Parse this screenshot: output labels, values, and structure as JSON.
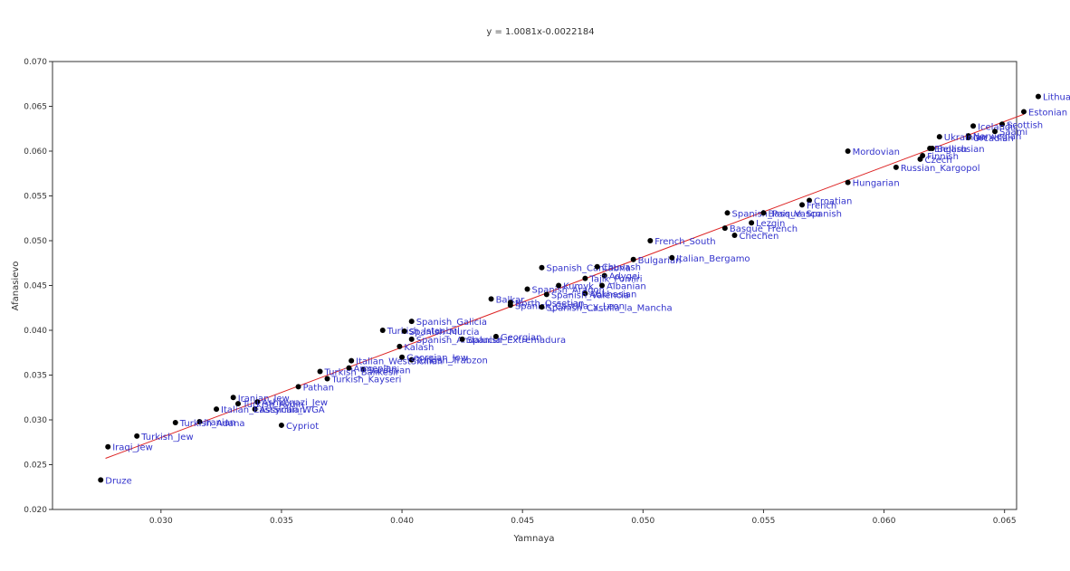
{
  "chart_data": {
    "type": "scatter",
    "title": "y = 1.0081x-0.0022184",
    "xlabel": "Yamnaya",
    "ylabel": "Afanasievo",
    "xlim": [
      0.0255,
      0.0655
    ],
    "ylim": [
      0.02,
      0.07
    ],
    "xticks": [
      "0.030",
      "0.035",
      "0.040",
      "0.045",
      "0.050",
      "0.055",
      "0.060",
      "0.065"
    ],
    "yticks": [
      "0.020",
      "0.025",
      "0.030",
      "0.035",
      "0.040",
      "0.045",
      "0.050",
      "0.055",
      "0.060",
      "0.065",
      "0.070"
    ],
    "trendline": {
      "slope": 1.0081,
      "intercept": -0.0022184,
      "x_range": [
        0.0277,
        0.0658
      ],
      "color": "#dd2222"
    },
    "point_color": "#000000",
    "label_color": "#3333cc",
    "points": [
      {
        "label": "Lithuanian",
        "x": 0.0664,
        "y": 0.0661
      },
      {
        "label": "Estonian",
        "x": 0.0658,
        "y": 0.0644
      },
      {
        "label": "Scottish",
        "x": 0.0649,
        "y": 0.063
      },
      {
        "label": "Icelandic",
        "x": 0.0637,
        "y": 0.0628
      },
      {
        "label": "Saami",
        "x": 0.0646,
        "y": 0.0622
      },
      {
        "label": "Norwegian",
        "x": 0.0635,
        "y": 0.0617
      },
      {
        "label": "Orcadian",
        "x": 0.0635,
        "y": 0.0615
      },
      {
        "label": "Ukrainian",
        "x": 0.0623,
        "y": 0.0616
      },
      {
        "label": "Belarusian",
        "x": 0.062,
        "y": 0.0603
      },
      {
        "label": "English",
        "x": 0.0619,
        "y": 0.0603
      },
      {
        "label": "Mordovian",
        "x": 0.0585,
        "y": 0.06
      },
      {
        "label": "Finnish",
        "x": 0.0616,
        "y": 0.0595
      },
      {
        "label": "Czech",
        "x": 0.0615,
        "y": 0.0591
      },
      {
        "label": "Russian_Kargopol",
        "x": 0.0605,
        "y": 0.0582
      },
      {
        "label": "Hungarian",
        "x": 0.0585,
        "y": 0.0565
      },
      {
        "label": "Croatian",
        "x": 0.0569,
        "y": 0.0545
      },
      {
        "label": "French",
        "x": 0.0566,
        "y": 0.054
      },
      {
        "label": "Spanish_Pais_Vasco",
        "x": 0.0535,
        "y": 0.0531
      },
      {
        "label": "Basque_Spanish",
        "x": 0.055,
        "y": 0.0531
      },
      {
        "label": "Lezgin",
        "x": 0.0545,
        "y": 0.052
      },
      {
        "label": "Basque_French",
        "x": 0.0534,
        "y": 0.0514
      },
      {
        "label": "Chechen",
        "x": 0.0538,
        "y": 0.0506
      },
      {
        "label": "French_South",
        "x": 0.0503,
        "y": 0.05
      },
      {
        "label": "Bulgarian",
        "x": 0.0496,
        "y": 0.0479
      },
      {
        "label": "Italian_Bergamo",
        "x": 0.0512,
        "y": 0.0481
      },
      {
        "label": "Spanish_Cantabria",
        "x": 0.0458,
        "y": 0.047
      },
      {
        "label": "Chuvash",
        "x": 0.0481,
        "y": 0.0471
      },
      {
        "label": "Adygei",
        "x": 0.0484,
        "y": 0.0461
      },
      {
        "label": "Tajik_Pomiri",
        "x": 0.0476,
        "y": 0.0458
      },
      {
        "label": "Albanian",
        "x": 0.0483,
        "y": 0.045
      },
      {
        "label": "Kumyk",
        "x": 0.0465,
        "y": 0.045
      },
      {
        "label": "Spanish_Aragon",
        "x": 0.0452,
        "y": 0.0446
      },
      {
        "label": "Abkhasian",
        "x": 0.0476,
        "y": 0.0441
      },
      {
        "label": "Spanish_Valencia",
        "x": 0.046,
        "y": 0.044
      },
      {
        "label": "Balkar",
        "x": 0.0437,
        "y": 0.0435
      },
      {
        "label": "North_Ossetian",
        "x": 0.0445,
        "y": 0.0431
      },
      {
        "label": "Spanish_Castilla_y_Leon",
        "x": 0.0445,
        "y": 0.0428
      },
      {
        "label": "Spanish_Castilla_la_Mancha",
        "x": 0.0458,
        "y": 0.0426
      },
      {
        "label": "Spanish_Galicia",
        "x": 0.0404,
        "y": 0.041
      },
      {
        "label": "Turkish_Istanbul",
        "x": 0.0392,
        "y": 0.04
      },
      {
        "label": "Spanish_Murcia",
        "x": 0.0401,
        "y": 0.0399
      },
      {
        "label": "Spanish_Andalucia",
        "x": 0.0404,
        "y": 0.039
      },
      {
        "label": "Spanish_Extremadura",
        "x": 0.0425,
        "y": 0.039
      },
      {
        "label": "Georgian",
        "x": 0.0439,
        "y": 0.0393
      },
      {
        "label": "Kalash",
        "x": 0.0399,
        "y": 0.0382
      },
      {
        "label": "Georgian_Jew",
        "x": 0.04,
        "y": 0.037
      },
      {
        "label": "Turkish_Trabzon",
        "x": 0.0404,
        "y": 0.0367
      },
      {
        "label": "Italian_WestSicilian",
        "x": 0.0379,
        "y": 0.0366
      },
      {
        "label": "Sardinian",
        "x": 0.0384,
        "y": 0.0356
      },
      {
        "label": "Armenian",
        "x": 0.0378,
        "y": 0.0358
      },
      {
        "label": "Turkish_Balikesir",
        "x": 0.0366,
        "y": 0.0354
      },
      {
        "label": "Turkish_Kayseri",
        "x": 0.0369,
        "y": 0.0346
      },
      {
        "label": "Pathan",
        "x": 0.0357,
        "y": 0.0337
      },
      {
        "label": "Iranian_Jew",
        "x": 0.033,
        "y": 0.0325
      },
      {
        "label": "Ashkenazi_Jew",
        "x": 0.034,
        "y": 0.032
      },
      {
        "label": "Turkish_Aydin",
        "x": 0.0332,
        "y": 0.0318
      },
      {
        "label": "Assyrian_WGA",
        "x": 0.0339,
        "y": 0.0312
      },
      {
        "label": "Italian_EastSicilian",
        "x": 0.0323,
        "y": 0.0312
      },
      {
        "label": "Iranian",
        "x": 0.0316,
        "y": 0.0298
      },
      {
        "label": "Turkish_Adana",
        "x": 0.0306,
        "y": 0.0297
      },
      {
        "label": "Cypriot",
        "x": 0.035,
        "y": 0.0294
      },
      {
        "label": "Turkish_Jew",
        "x": 0.029,
        "y": 0.0282
      },
      {
        "label": "Iraqi_Jew",
        "x": 0.0278,
        "y": 0.027
      },
      {
        "label": "Druze",
        "x": 0.0275,
        "y": 0.0233
      }
    ]
  }
}
